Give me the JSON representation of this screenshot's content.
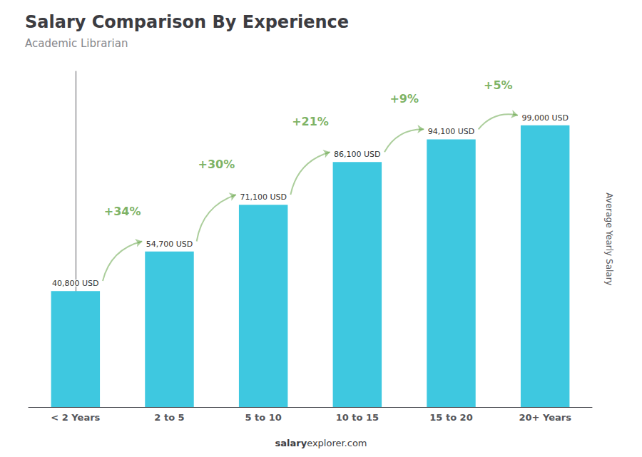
{
  "chart_data": {
    "type": "bar",
    "title": "Salary Comparison By Experience",
    "subtitle": "Academic Librarian",
    "categories": [
      "< 2 Years",
      "2 to 5",
      "5 to 10",
      "10 to 15",
      "15 to 20",
      "20+ Years"
    ],
    "values": [
      40800,
      54700,
      71100,
      86100,
      94100,
      99000
    ],
    "value_labels": [
      "40,800 USD",
      "54,700 USD",
      "71,100 USD",
      "86,100 USD",
      "94,100 USD",
      "99,000 USD"
    ],
    "data_labels": true,
    "color": "#3EC8E0",
    "ylabel": "Average Yearly Salary",
    "ylim": [
      0,
      118000
    ],
    "tick_labels": "x",
    "grid": false,
    "annotations": [
      "+34%",
      "+30%",
      "+21%",
      "+9%",
      "+5%"
    ],
    "footer": [
      "salary",
      "explorer.com"
    ]
  }
}
